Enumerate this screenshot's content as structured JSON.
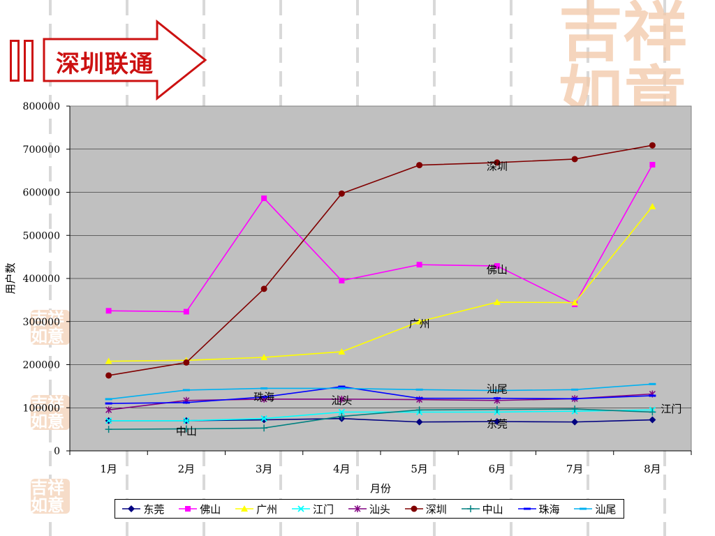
{
  "header": {
    "title": "深圳联通",
    "accent_color": "#cc1111"
  },
  "decor": {
    "seal_text": "吉祥如意",
    "seal_color": "#f2c8a8"
  },
  "chart_data": {
    "type": "line",
    "title": "",
    "xlabel": "月份",
    "ylabel": "用户数",
    "ylim": [
      0,
      800000
    ],
    "y_ticks": [
      0,
      100000,
      200000,
      300000,
      400000,
      500000,
      600000,
      700000,
      800000
    ],
    "categories": [
      "1月",
      "2月",
      "3月",
      "4月",
      "5月",
      "6月",
      "7月",
      "8月"
    ],
    "grid": true,
    "plot_background": "#c0c0c0",
    "legend_position": "bottom",
    "series": [
      {
        "name": "东莞",
        "color": "#000080",
        "marker": "diamond",
        "values": [
          70000,
          70000,
          72000,
          75000,
          67000,
          68000,
          67000,
          72000
        ]
      },
      {
        "name": "佛山",
        "color": "#ff00ff",
        "marker": "square",
        "values": [
          325000,
          323000,
          586000,
          395000,
          432000,
          429000,
          340000,
          664000
        ]
      },
      {
        "name": "广州",
        "color": "#ffff00",
        "marker": "triangle",
        "values": [
          208000,
          210000,
          217000,
          230000,
          300000,
          345000,
          344000,
          567000
        ]
      },
      {
        "name": "江门",
        "color": "#00ffff",
        "marker": "x",
        "values": [
          70000,
          70000,
          75000,
          90000,
          90000,
          90000,
          92000,
          95000
        ]
      },
      {
        "name": "汕头",
        "color": "#800080",
        "marker": "star",
        "values": [
          95000,
          117000,
          120000,
          120000,
          119000,
          117000,
          121000,
          132000
        ]
      },
      {
        "name": "深圳",
        "color": "#800000",
        "marker": "circle",
        "values": [
          175000,
          205000,
          376000,
          597000,
          663000,
          669000,
          677000,
          709000
        ]
      },
      {
        "name": "中山",
        "color": "#008080",
        "marker": "plus",
        "values": [
          50000,
          51000,
          53000,
          80000,
          95000,
          96000,
          97000,
          90000
        ]
      },
      {
        "name": "珠海",
        "color": "#0000ff",
        "marker": "dash",
        "values": [
          110000,
          112000,
          125000,
          149000,
          122000,
          122000,
          121000,
          128000
        ]
      },
      {
        "name": "汕尾",
        "color": "#00b0f0",
        "marker": "dash",
        "values": [
          120000,
          141000,
          145000,
          145000,
          142000,
          140000,
          142000,
          155000
        ]
      }
    ],
    "annotations": [
      {
        "text": "深圳",
        "x": "6月",
        "y": 660000
      },
      {
        "text": "佛山",
        "x": "6月",
        "y": 420000
      },
      {
        "text": "广州",
        "x": "5月",
        "y": 295000
      },
      {
        "text": "汕尾",
        "x": "6月",
        "y": 143000
      },
      {
        "text": "珠海",
        "x": "3月",
        "y": 125000
      },
      {
        "text": "汕头",
        "x": "4月",
        "y": 117000
      },
      {
        "text": "江门",
        "x": "8月",
        "y": 97000
      },
      {
        "text": "东莞",
        "x": "6月",
        "y": 62000
      },
      {
        "text": "中山",
        "x": "2月",
        "y": 45000
      }
    ]
  }
}
